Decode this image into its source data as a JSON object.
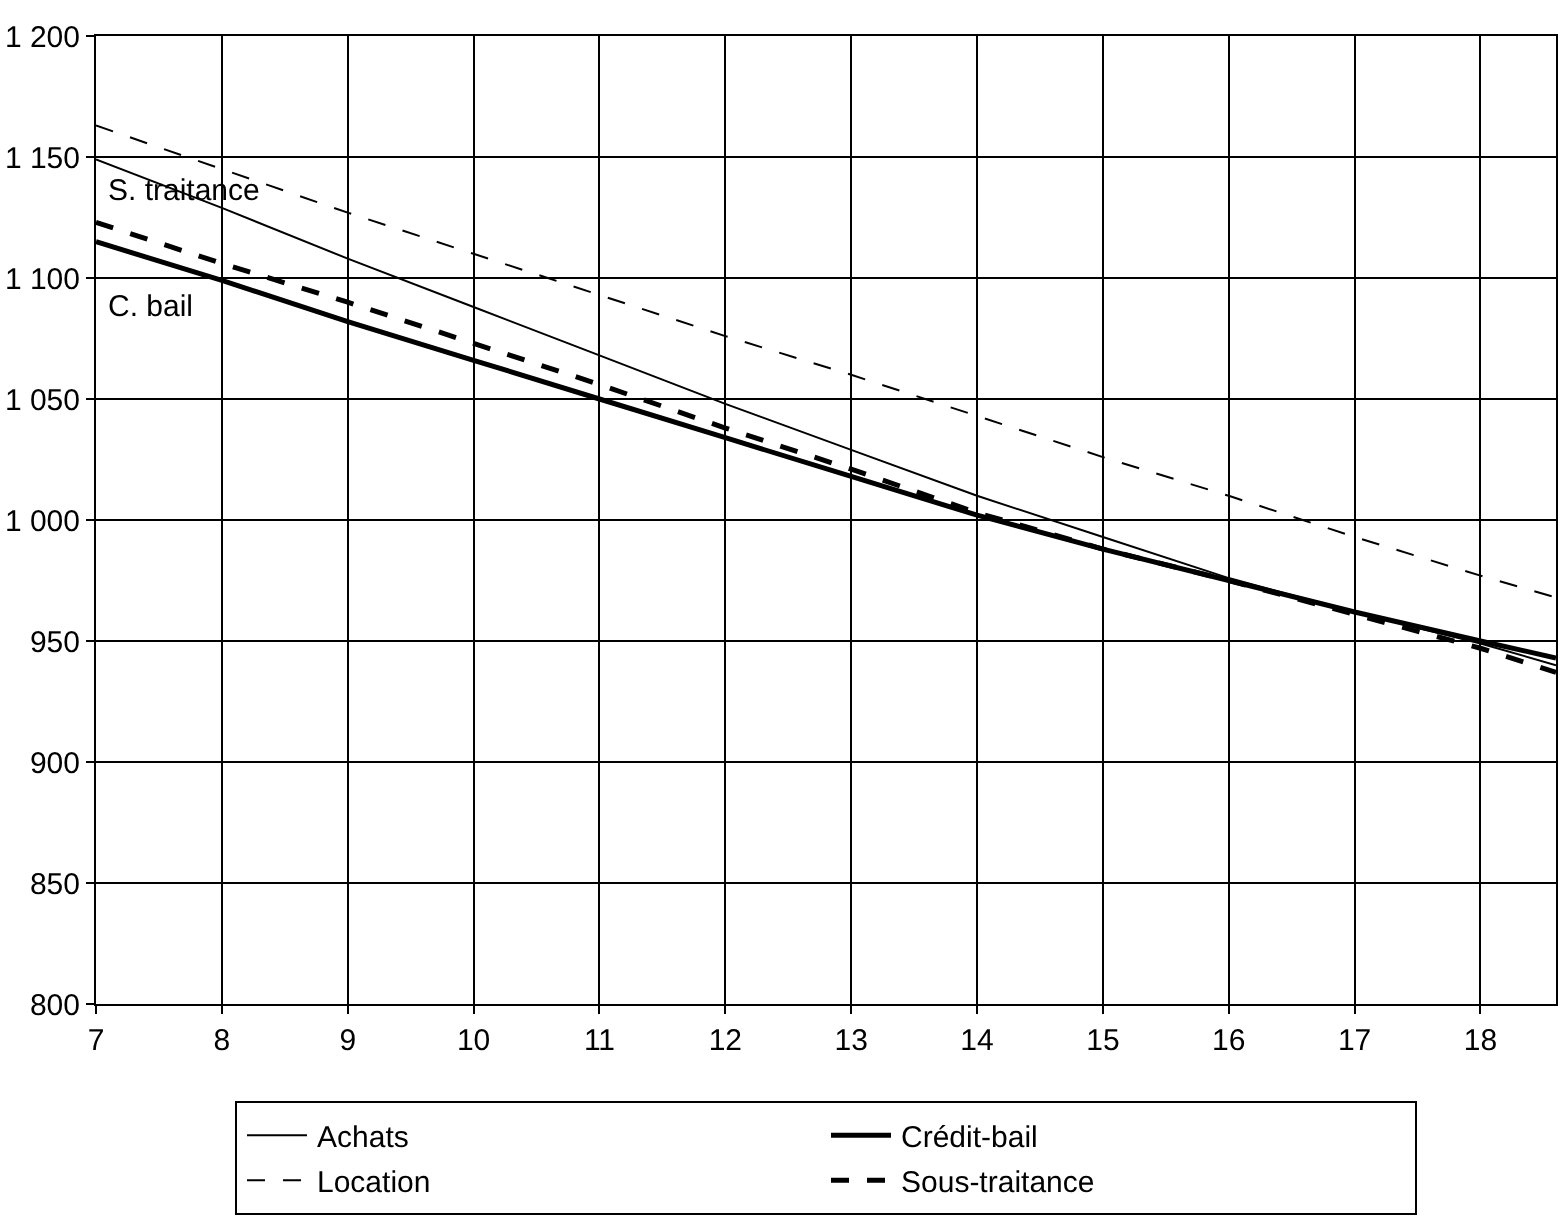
{
  "chart_data": {
    "type": "line",
    "xlim": [
      7,
      18.6
    ],
    "xticks": [
      7,
      8,
      9,
      10,
      11,
      12,
      13,
      14,
      15,
      16,
      17,
      18
    ],
    "ylim": [
      800,
      1200
    ],
    "yticks": [
      {
        "value": 800,
        "label": "800"
      },
      {
        "value": 850,
        "label": "850"
      },
      {
        "value": 900,
        "label": "900"
      },
      {
        "value": 950,
        "label": "950"
      },
      {
        "value": 1000,
        "label": "1 000"
      },
      {
        "value": 1050,
        "label": "1 050"
      },
      {
        "value": 1100,
        "label": "1 100"
      },
      {
        "value": 1150,
        "label": "1 150"
      },
      {
        "value": 1200,
        "label": "1 200"
      }
    ],
    "grid": true,
    "legend": "bottom",
    "marker": "none",
    "x": [
      7,
      8,
      9,
      10,
      11,
      12,
      13,
      14,
      15,
      16,
      17,
      18,
      18.6
    ],
    "series": [
      {
        "name": "Achats",
        "color": "#000000",
        "line_style": "solid",
        "values": [
          1149,
          1129,
          1108,
          1088,
          1068,
          1048,
          1029,
          1010,
          993,
          976,
          962,
          949,
          940
        ]
      },
      {
        "name": "Crédit-bail",
        "color": "#000000",
        "line_style": "solid",
        "values": [
          1115,
          1099,
          1082,
          1066,
          1050,
          1034,
          1018,
          1002,
          988,
          975,
          962,
          950,
          943
        ]
      },
      {
        "name": "Location",
        "color": "#000000",
        "line_style": "dashed",
        "values": [
          1163,
          1145,
          1127,
          1110,
          1093,
          1076,
          1060,
          1043,
          1026,
          1010,
          993,
          977,
          968
        ]
      },
      {
        "name": "Sous-traitance",
        "color": "#000000",
        "line_style": "dashed",
        "values": [
          1123,
          1106,
          1090,
          1073,
          1056,
          1038,
          1021,
          1003,
          988,
          975,
          961,
          947,
          937
        ]
      }
    ],
    "annotations": [
      "S. traitance",
      "C. bail"
    ]
  }
}
